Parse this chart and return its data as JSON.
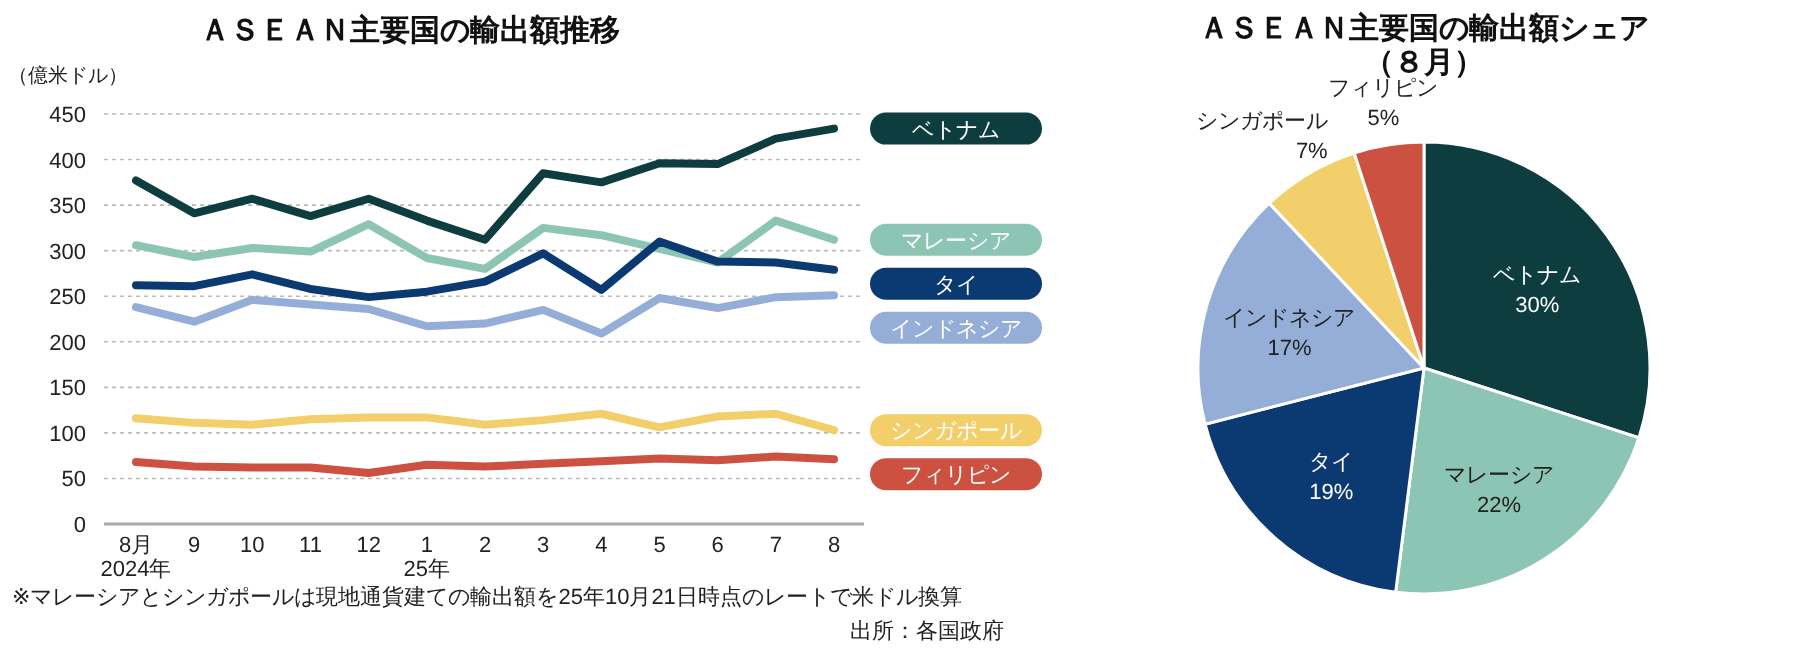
{
  "chart_data": [
    {
      "type": "line",
      "title": "ＡＳＥＡＮ主要国の輸出額推移",
      "ylabel": "（億米ドル）",
      "categories": [
        "8月\n2024年",
        "9",
        "10",
        "11",
        "12",
        "1\n25年",
        "2",
        "3",
        "4",
        "5",
        "6",
        "7",
        "8"
      ],
      "series": [
        {
          "name": "ベトナム",
          "color": "#0d3d3f",
          "values": [
            377,
            341,
            357,
            338,
            357,
            333,
            312,
            385,
            375,
            396,
            395,
            423,
            434
          ]
        },
        {
          "name": "マレーシア",
          "color": "#8cc5b3",
          "values": [
            306,
            293,
            303,
            299,
            329,
            292,
            280,
            325,
            317,
            302,
            287,
            333,
            312
          ]
        },
        {
          "name": "タイ",
          "color": "#0b3a73",
          "values": [
            262,
            261,
            274,
            258,
            249,
            255,
            266,
            297,
            257,
            310,
            288,
            287,
            279
          ]
        },
        {
          "name": "インドネシア",
          "color": "#94aed8",
          "values": [
            238,
            222,
            246,
            241,
            236,
            217,
            220,
            235,
            209,
            248,
            237,
            249,
            251
          ]
        },
        {
          "name": "シンガポール",
          "color": "#f2cf6b",
          "values": [
            116,
            111,
            109,
            115,
            117,
            117,
            109,
            114,
            121,
            106,
            118,
            121,
            103
          ]
        },
        {
          "name": "フィリピン",
          "color": "#cc5140",
          "values": [
            68,
            63,
            62,
            62,
            56,
            65,
            63,
            66,
            69,
            72,
            70,
            74,
            71
          ]
        }
      ],
      "ylim": [
        0,
        450
      ],
      "yticks": [
        0,
        50,
        100,
        150,
        200,
        250,
        300,
        350,
        400,
        450
      ],
      "grid": "y",
      "legend": "right",
      "annotations": [
        "※マレーシアとシンガポールは現地通貨建ての輸出額を25年10月21日時点のレートで米ドル換算",
        "出所：各国政府"
      ]
    },
    {
      "type": "pie",
      "title": "ＡＳＥＡＮ主要国の輸出額シェア",
      "subtitle": "（８月）",
      "categories": [
        "ベトナム",
        "マレーシア",
        "タイ",
        "インドネシア",
        "シンガポール",
        "フィリピン"
      ],
      "values": [
        30,
        22,
        19,
        17,
        7,
        5
      ],
      "value_labels": [
        "30%",
        "22%",
        "19%",
        "17%",
        "7%",
        "5%"
      ],
      "colors": [
        "#0d3d3f",
        "#8cc5b3",
        "#0b3a73",
        "#94aed8",
        "#f2cf6b",
        "#cc5140"
      ]
    }
  ]
}
